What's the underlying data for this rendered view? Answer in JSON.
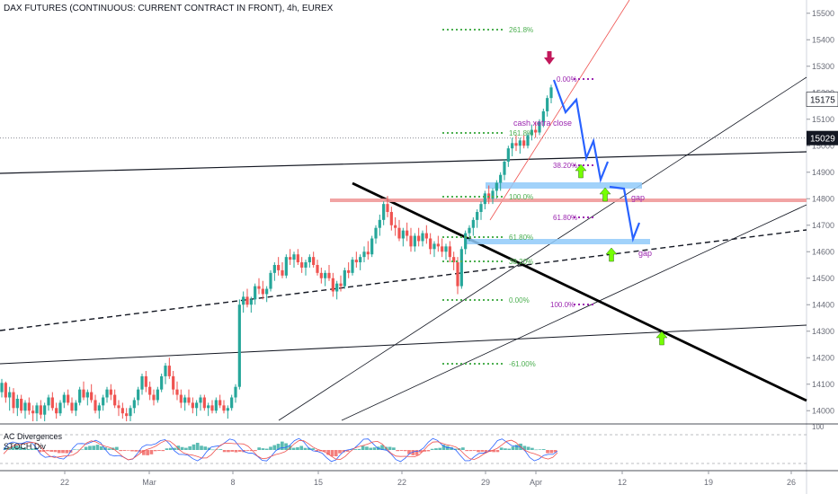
{
  "title": "DAX FUTURES (CONTINUOUS: CURRENT CONTRACT IN FRONT), 4h, EUREX",
  "colors": {
    "up": "#26a69a",
    "down": "#ef5350",
    "fib": "#4caf50",
    "fib_purple": "#9c27b0",
    "arrow_blue": "#2962ff",
    "zone_blue": "#90caf9",
    "resistance_red": "#ef9a9a",
    "trendline_dark": "#000000",
    "marker_red": "#c2185b",
    "marker_green": "#76ff03"
  },
  "chart_data": {
    "type": "candlestick",
    "y_axis": {
      "range": [
        13950,
        15550
      ],
      "ticks": [
        14000,
        14100,
        14200,
        14300,
        14400,
        14500,
        14600,
        14700,
        14800,
        14900,
        15000,
        15100,
        15200,
        15300,
        15400,
        15500
      ],
      "price_labels": [
        15175,
        15029
      ]
    },
    "x_axis": {
      "tick_labels": [
        "22",
        "Mar",
        "8",
        "15",
        "22",
        "29",
        "Apr",
        "12",
        "19",
        "26"
      ]
    },
    "fib_levels_left": [
      "261.8%",
      "161.8%",
      "100.0%",
      "61.80%",
      "38.20%",
      "0.00%",
      "-61.00%"
    ],
    "fib_levels_right": [
      "0.00%",
      "38.20%",
      "61.80%",
      "100.0%"
    ],
    "annotations": {
      "cash_close": "cash xetra close",
      "gap1": "gap",
      "gap2": "gap"
    },
    "candles": [
      [
        14070,
        14120,
        14050,
        14105
      ],
      [
        14105,
        14110,
        14030,
        14050
      ],
      [
        14050,
        14090,
        14000,
        14070
      ],
      [
        14070,
        14085,
        13990,
        14010
      ],
      [
        14010,
        14060,
        13980,
        14045
      ],
      [
        14045,
        14060,
        13990,
        14000
      ],
      [
        14000,
        14040,
        13970,
        14030
      ],
      [
        14030,
        14050,
        13985,
        14000
      ],
      [
        14000,
        14020,
        13960,
        13990
      ],
      [
        13990,
        14030,
        13960,
        14020
      ],
      [
        14020,
        14040,
        13970,
        13985
      ],
      [
        13985,
        14030,
        13960,
        14020
      ],
      [
        14020,
        14060,
        14000,
        14050
      ],
      [
        14050,
        14070,
        14000,
        14010
      ],
      [
        14010,
        14030,
        13970,
        13990
      ],
      [
        13990,
        14040,
        13980,
        14030
      ],
      [
        14030,
        14070,
        14010,
        14060
      ],
      [
        14060,
        14080,
        14020,
        14030
      ],
      [
        14030,
        14050,
        13990,
        14000
      ],
      [
        14000,
        14040,
        13980,
        14030
      ],
      [
        14030,
        14090,
        14020,
        14080
      ],
      [
        14080,
        14110,
        14040,
        14050
      ],
      [
        14050,
        14080,
        14020,
        14070
      ],
      [
        14070,
        14100,
        14030,
        14040
      ],
      [
        14040,
        14060,
        13990,
        14000
      ],
      [
        14000,
        14030,
        13970,
        14020
      ],
      [
        14020,
        14060,
        14000,
        14050
      ],
      [
        14050,
        14090,
        14030,
        14080
      ],
      [
        14080,
        14100,
        14040,
        14060
      ],
      [
        14060,
        14080,
        14010,
        14020
      ],
      [
        14020,
        14040,
        13980,
        14010
      ],
      [
        14010,
        14030,
        13970,
        13990
      ],
      [
        13990,
        14010,
        13960,
        13980
      ],
      [
        13980,
        14020,
        13960,
        14010
      ],
      [
        14010,
        14050,
        13990,
        14040
      ],
      [
        14040,
        14090,
        14020,
        14080
      ],
      [
        14080,
        14140,
        14060,
        14130
      ],
      [
        14130,
        14150,
        14070,
        14090
      ],
      [
        14090,
        14110,
        14040,
        14060
      ],
      [
        14060,
        14080,
        14020,
        14040
      ],
      [
        14040,
        14090,
        14030,
        14080
      ],
      [
        14080,
        14140,
        14070,
        14130
      ],
      [
        14130,
        14180,
        14100,
        14170
      ],
      [
        14170,
        14200,
        14120,
        14130
      ],
      [
        14130,
        14150,
        14060,
        14080
      ],
      [
        14080,
        14110,
        14040,
        14060
      ],
      [
        14060,
        14080,
        14010,
        14030
      ],
      [
        14030,
        14060,
        14000,
        14050
      ],
      [
        14050,
        14080,
        14020,
        14030
      ],
      [
        14030,
        14050,
        13990,
        14010
      ],
      [
        14010,
        14040,
        13980,
        14030
      ],
      [
        14030,
        14060,
        14000,
        14050
      ],
      [
        14050,
        14060,
        14000,
        14010
      ],
      [
        14010,
        14030,
        13980,
        14020
      ],
      [
        14020,
        14040,
        13990,
        14000
      ],
      [
        14000,
        14050,
        13990,
        14040
      ],
      [
        14040,
        14060,
        14010,
        14020
      ],
      [
        14020,
        14040,
        13990,
        14000
      ],
      [
        14000,
        14020,
        13970,
        14010
      ],
      [
        14010,
        14060,
        14000,
        14050
      ],
      [
        14050,
        14100,
        14030,
        14090
      ],
      [
        14090,
        14420,
        14080,
        14400
      ],
      [
        14400,
        14450,
        14370,
        14430
      ],
      [
        14430,
        14460,
        14390,
        14400
      ],
      [
        14400,
        14430,
        14370,
        14420
      ],
      [
        14420,
        14480,
        14400,
        14470
      ],
      [
        14470,
        14500,
        14440,
        14460
      ],
      [
        14460,
        14490,
        14420,
        14440
      ],
      [
        14440,
        14470,
        14410,
        14460
      ],
      [
        14460,
        14530,
        14450,
        14520
      ],
      [
        14520,
        14560,
        14490,
        14550
      ],
      [
        14550,
        14580,
        14510,
        14530
      ],
      [
        14530,
        14560,
        14500,
        14510
      ],
      [
        14510,
        14590,
        14500,
        14580
      ],
      [
        14580,
        14610,
        14550,
        14570
      ],
      [
        14570,
        14600,
        14540,
        14590
      ],
      [
        14590,
        14610,
        14550,
        14560
      ],
      [
        14560,
        14580,
        14520,
        14540
      ],
      [
        14540,
        14570,
        14510,
        14560
      ],
      [
        14560,
        14590,
        14540,
        14580
      ],
      [
        14580,
        14600,
        14540,
        14550
      ],
      [
        14550,
        14570,
        14510,
        14520
      ],
      [
        14520,
        14540,
        14480,
        14500
      ],
      [
        14500,
        14530,
        14470,
        14520
      ],
      [
        14520,
        14550,
        14490,
        14500
      ],
      [
        14500,
        14520,
        14430,
        14450
      ],
      [
        14450,
        14490,
        14420,
        14480
      ],
      [
        14480,
        14510,
        14450,
        14470
      ],
      [
        14470,
        14540,
        14460,
        14530
      ],
      [
        14530,
        14560,
        14500,
        14520
      ],
      [
        14520,
        14580,
        14510,
        14570
      ],
      [
        14570,
        14600,
        14540,
        14560
      ],
      [
        14560,
        14590,
        14530,
        14580
      ],
      [
        14580,
        14620,
        14560,
        14600
      ],
      [
        14600,
        14640,
        14570,
        14590
      ],
      [
        14590,
        14660,
        14580,
        14650
      ],
      [
        14650,
        14700,
        14630,
        14690
      ],
      [
        14690,
        14740,
        14660,
        14720
      ],
      [
        14720,
        14790,
        14700,
        14780
      ],
      [
        14780,
        14810,
        14730,
        14750
      ],
      [
        14750,
        14770,
        14680,
        14700
      ],
      [
        14700,
        14730,
        14660,
        14690
      ],
      [
        14690,
        14720,
        14640,
        14650
      ],
      [
        14650,
        14690,
        14620,
        14680
      ],
      [
        14680,
        14710,
        14640,
        14660
      ],
      [
        14660,
        14690,
        14600,
        14620
      ],
      [
        14620,
        14670,
        14600,
        14660
      ],
      [
        14660,
        14690,
        14620,
        14640
      ],
      [
        14640,
        14680,
        14620,
        14670
      ],
      [
        14670,
        14700,
        14630,
        14650
      ],
      [
        14650,
        14670,
        14590,
        14610
      ],
      [
        14610,
        14640,
        14580,
        14630
      ],
      [
        14630,
        14660,
        14600,
        14620
      ],
      [
        14620,
        14650,
        14580,
        14600
      ],
      [
        14600,
        14630,
        14570,
        14620
      ],
      [
        14620,
        14640,
        14560,
        14580
      ],
      [
        14580,
        14600,
        14530,
        14560
      ],
      [
        14560,
        14580,
        14440,
        14470
      ],
      [
        14470,
        14620,
        14460,
        14610
      ],
      [
        14610,
        14680,
        14590,
        14670
      ],
      [
        14670,
        14700,
        14640,
        14690
      ],
      [
        14690,
        14730,
        14660,
        14720
      ],
      [
        14720,
        14760,
        14690,
        14750
      ],
      [
        14750,
        14790,
        14720,
        14780
      ],
      [
        14780,
        14830,
        14760,
        14820
      ],
      [
        14820,
        14850,
        14780,
        14800
      ],
      [
        14800,
        14840,
        14780,
        14830
      ],
      [
        14830,
        14870,
        14800,
        14860
      ],
      [
        14860,
        14900,
        14830,
        14890
      ],
      [
        14890,
        14950,
        14870,
        14940
      ],
      [
        14940,
        15000,
        14920,
        14990
      ],
      [
        14990,
        15030,
        14960,
        15010
      ],
      [
        15010,
        15040,
        14980,
        15000
      ],
      [
        15000,
        15030,
        14970,
        15020
      ],
      [
        15020,
        15040,
        14990,
        15000
      ],
      [
        15000,
        15050,
        14990,
        15040
      ],
      [
        15040,
        15080,
        15020,
        15060
      ],
      [
        15060,
        15090,
        15030,
        15050
      ],
      [
        15050,
        15100,
        15040,
        15090
      ],
      [
        15090,
        15140,
        15070,
        15130
      ],
      [
        15130,
        15190,
        15110,
        15180
      ],
      [
        15180,
        15230,
        15160,
        15220
      ]
    ],
    "indicator": {
      "labels": [
        "AC Divergences",
        "STOCH Div"
      ],
      "ac_values": [
        0.3,
        0.5,
        0.2,
        -0.2,
        -0.4,
        -0.3,
        0.1,
        0.4,
        0.6,
        0.3,
        -0.1,
        -0.3,
        -0.5,
        -0.2,
        0.2,
        0.5,
        0.7,
        0.4,
        0.1,
        -0.2,
        -0.4,
        -0.1,
        0.3,
        0.6,
        0.8,
        0.5,
        0.2,
        -0.3,
        -0.6,
        -0.4,
        0.1,
        0.4,
        0.6,
        0.3,
        -0.2,
        -0.5,
        -0.3,
        0.2,
        0.5,
        0.3,
        -0.1,
        -0.4,
        -0.2,
        0.3,
        0.6,
        0.4,
        0.1,
        -0.3
      ]
    }
  }
}
